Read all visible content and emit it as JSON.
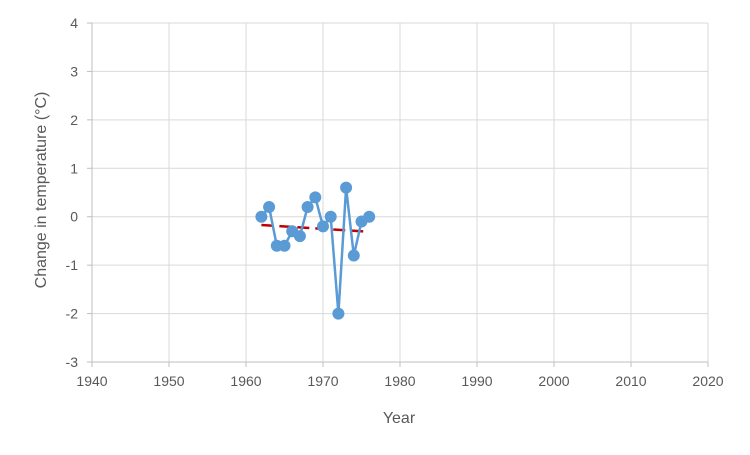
{
  "chart_data": {
    "type": "line",
    "title": "",
    "xlabel": "Year",
    "ylabel": "Change in temperature (°C)",
    "xlim": [
      1940,
      2020
    ],
    "ylim": [
      -3,
      4
    ],
    "x_ticks": [
      1940,
      1950,
      1960,
      1970,
      1980,
      1990,
      2000,
      2010,
      2020
    ],
    "y_ticks": [
      -3,
      -2,
      -1,
      0,
      1,
      2,
      3,
      4
    ],
    "grid": true,
    "legend": "none",
    "series": [
      {
        "kind": "line-with-markers",
        "color": "#5b9bd5",
        "x": [
          1962,
          1963,
          1964,
          1965,
          1966,
          1967,
          1968,
          1969,
          1970,
          1971,
          1972,
          1973,
          1974,
          1975,
          1976
        ],
        "y": [
          0.0,
          0.2,
          -0.6,
          -0.6,
          -0.3,
          -0.4,
          0.2,
          0.4,
          -0.2,
          0.0,
          -2.0,
          0.6,
          -0.8,
          -0.1,
          0.0
        ]
      },
      {
        "kind": "trendline-dashed",
        "color": "#c00000",
        "x": [
          1962,
          1976
        ],
        "y": [
          -0.17,
          -0.31
        ]
      }
    ]
  }
}
